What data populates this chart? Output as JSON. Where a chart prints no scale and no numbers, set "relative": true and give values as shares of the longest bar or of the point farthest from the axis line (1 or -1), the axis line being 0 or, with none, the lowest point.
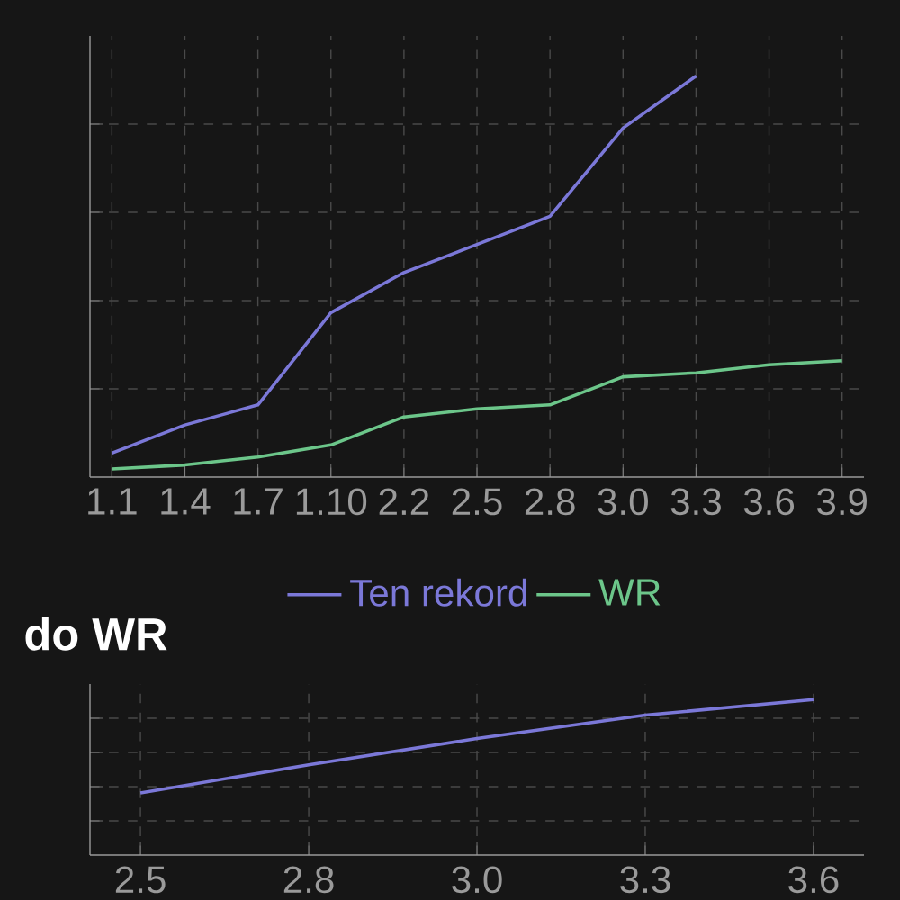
{
  "chart_data": [
    {
      "type": "line",
      "relative": true,
      "categories": [
        "1.1",
        "1.4",
        "1.7",
        "1.10",
        "2.2",
        "2.5",
        "2.8",
        "3.0",
        "3.3",
        "3.6",
        "3.9"
      ],
      "series": [
        {
          "name": "Ten rekord",
          "color": "#7b78d8",
          "values": [
            0.06,
            0.13,
            0.18,
            0.41,
            0.51,
            0.58,
            0.65,
            0.87,
            1.0,
            null,
            null
          ]
        },
        {
          "name": "WR",
          "color": "#6cc68a",
          "values": [
            0.02,
            0.03,
            0.05,
            0.08,
            0.15,
            0.17,
            0.18,
            0.25,
            0.26,
            0.28,
            0.29
          ]
        }
      ],
      "grid": true,
      "legend": "bottom",
      "tick_labels": "x"
    },
    {
      "type": "line",
      "relative": true,
      "title": "do WR",
      "categories": [
        "2.5",
        "2.8",
        "3.0",
        "3.3",
        "3.6"
      ],
      "series": [
        {
          "color": "#7b78d8",
          "values": [
            0.4,
            0.58,
            0.75,
            0.9,
            1.0
          ]
        }
      ],
      "grid": true,
      "tick_labels": "x"
    }
  ]
}
